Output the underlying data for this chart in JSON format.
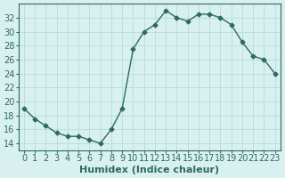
{
  "xlabel": "Humidex (Indice chaleur)",
  "ylabel": "",
  "x": [
    0,
    1,
    2,
    3,
    4,
    5,
    6,
    7,
    8,
    9,
    10,
    11,
    12,
    13,
    14,
    15,
    16,
    17,
    18,
    19,
    20,
    21,
    22,
    23
  ],
  "y": [
    19,
    17.5,
    16.5,
    15.5,
    15,
    15,
    14.5,
    14,
    16,
    19,
    27.5,
    30,
    31,
    33,
    32,
    31.5,
    32.5,
    32.5,
    32,
    31,
    28.5,
    26.5,
    26,
    24
  ],
  "line_color": "#2e6b5e",
  "marker_color": "#2e6b5e",
  "bg_color": "#d8f0f0",
  "grid_color": "#b0d8d8",
  "ylim": [
    13,
    34
  ],
  "xlim": [
    -0.5,
    23.5
  ],
  "yticks": [
    14,
    16,
    18,
    20,
    22,
    24,
    26,
    28,
    30,
    32
  ],
  "xticks": [
    0,
    1,
    2,
    3,
    4,
    5,
    6,
    7,
    8,
    9,
    10,
    11,
    12,
    13,
    14,
    15,
    16,
    17,
    18,
    19,
    20,
    21,
    22,
    23
  ],
  "tick_fontsize": 7,
  "label_fontsize": 8
}
